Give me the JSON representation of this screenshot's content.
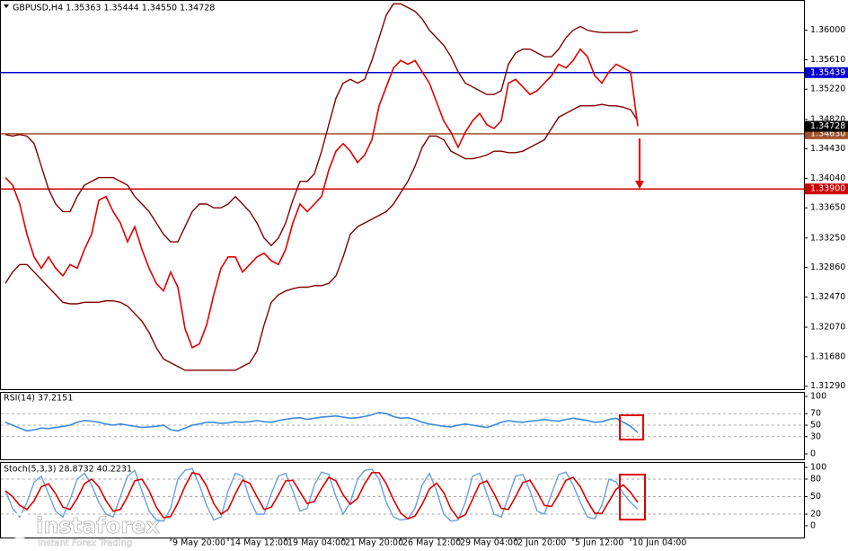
{
  "chart_data": [
    {
      "type": "line",
      "title": "GBPUSD,H4  1.35363 1.35444 1.34550 1.34728",
      "categories": [
        null,
        null,
        null,
        null,
        null,
        null,
        null,
        null,
        null,
        null,
        null,
        null,
        null,
        null,
        null,
        null,
        null,
        null,
        null,
        null,
        null,
        null,
        null,
        "9 May 20:00",
        null,
        null,
        null,
        null,
        null,
        null,
        null,
        "14 May 12:00",
        null,
        null,
        null,
        null,
        null,
        null,
        null,
        "19 May 04:00",
        null,
        null,
        null,
        null,
        null,
        null,
        null,
        "21 May 20:00",
        null,
        null,
        null,
        null,
        null,
        null,
        null,
        "26 May 12:00",
        null,
        null,
        null,
        null,
        null,
        null,
        null,
        "29 May 04:00",
        null,
        null,
        null,
        null,
        null,
        null,
        null,
        "2 Jun 20:00",
        null,
        null,
        null,
        null,
        null,
        null,
        null,
        "5 Jun 12:00",
        null,
        null,
        null,
        null,
        null,
        null,
        null,
        "10 Jun 04:00",
        null
      ],
      "series": [
        {
          "color": "#800000",
          "values": [
            1.3462,
            1.346,
            1.3462,
            1.346,
            1.345,
            1.342,
            1.339,
            1.337,
            1.336,
            1.336,
            1.338,
            1.3395,
            1.34,
            1.3405,
            1.3405,
            1.3405,
            1.34,
            1.3395,
            1.338,
            1.337,
            1.336,
            1.3345,
            1.333,
            1.332,
            1.332,
            1.334,
            1.336,
            1.337,
            1.337,
            1.3365,
            1.3365,
            1.337,
            1.338,
            1.337,
            1.336,
            1.3345,
            1.3325,
            1.3315,
            1.3325,
            1.3345,
            1.3375,
            1.34,
            1.34,
            1.341,
            1.344,
            1.3475,
            1.351,
            1.353,
            1.3535,
            1.353,
            1.3535,
            1.356,
            1.359,
            1.362,
            1.3635,
            1.3635,
            1.363,
            1.3625,
            1.3615,
            1.36,
            1.359,
            1.358,
            1.3565,
            1.3545,
            1.353,
            1.3525,
            1.352,
            1.3515,
            1.3515,
            1.352,
            1.3555,
            1.357,
            1.3575,
            1.3575,
            1.357,
            1.3565,
            1.3565,
            1.3575,
            1.359,
            1.36,
            1.3605,
            1.36,
            1.3598,
            1.3597,
            1.3597,
            1.3597,
            1.3597,
            1.3597,
            1.36
          ]
        },
        {
          "color": "#800000",
          "values": [
            1.3265,
            1.328,
            1.329,
            1.329,
            1.328,
            1.327,
            1.326,
            1.325,
            1.324,
            1.3238,
            1.3238,
            1.324,
            1.324,
            1.324,
            1.3242,
            1.3242,
            1.324,
            1.3235,
            1.3225,
            1.3215,
            1.32,
            1.318,
            1.3165,
            1.316,
            1.3155,
            1.315,
            1.315,
            1.315,
            1.315,
            1.315,
            1.315,
            1.315,
            1.315,
            1.3155,
            1.316,
            1.3175,
            1.321,
            1.324,
            1.325,
            1.3255,
            1.3258,
            1.326,
            1.326,
            1.3262,
            1.3262,
            1.3265,
            1.3275,
            1.33,
            1.333,
            1.334,
            1.3345,
            1.335,
            1.3355,
            1.336,
            1.337,
            1.3385,
            1.34,
            1.342,
            1.3445,
            1.346,
            1.346,
            1.3455,
            1.344,
            1.3435,
            1.343,
            1.343,
            1.3432,
            1.3435,
            1.344,
            1.344,
            1.3438,
            1.3438,
            1.344,
            1.3445,
            1.345,
            1.3455,
            1.347,
            1.3485,
            1.349,
            1.3495,
            1.35,
            1.35,
            1.35,
            1.3502,
            1.35,
            1.35,
            1.3498,
            1.3495,
            1.348
          ]
        },
        {
          "color": "#e00000",
          "values": [
            1.3405,
            1.3395,
            1.337,
            1.333,
            1.33,
            1.3285,
            1.33,
            1.3285,
            1.3275,
            1.329,
            1.3285,
            1.331,
            1.333,
            1.3375,
            1.338,
            1.336,
            1.3345,
            1.332,
            1.334,
            1.331,
            1.3285,
            1.3265,
            1.3255,
            1.328,
            1.326,
            1.3205,
            1.318,
            1.3185,
            1.321,
            1.325,
            1.3285,
            1.33,
            1.33,
            1.328,
            1.329,
            1.33,
            1.3305,
            1.3295,
            1.329,
            1.331,
            1.3345,
            1.337,
            1.336,
            1.337,
            1.338,
            1.3415,
            1.344,
            1.345,
            1.344,
            1.3425,
            1.3435,
            1.3455,
            1.35,
            1.3525,
            1.355,
            1.356,
            1.3555,
            1.356,
            1.3545,
            1.353,
            1.3505,
            1.348,
            1.3465,
            1.3445,
            1.3465,
            1.348,
            1.349,
            1.3475,
            1.347,
            1.348,
            1.353,
            1.3535,
            1.3525,
            1.3515,
            1.352,
            1.353,
            1.354,
            1.3555,
            1.355,
            1.356,
            1.3575,
            1.3565,
            1.354,
            1.353,
            1.3545,
            1.3555,
            1.355,
            1.3545,
            1.3473
          ]
        }
      ],
      "ylim": [
        1.3125,
        1.364
      ],
      "yticks": [
        {
          "value": 1.36,
          "label": "1.36000"
        },
        {
          "value": 1.3561,
          "label": "1.35610"
        },
        {
          "value": 1.3522,
          "label": "1.35220"
        },
        {
          "value": 1.3482,
          "label": "1.34820"
        },
        {
          "value": 1.3443,
          "label": "1.34430"
        },
        {
          "value": 1.3404,
          "label": "1.34040"
        },
        {
          "value": 1.3365,
          "label": "1.33650"
        },
        {
          "value": 1.3325,
          "label": "1.33250"
        },
        {
          "value": 1.3286,
          "label": "1.32860"
        },
        {
          "value": 1.3247,
          "label": "1.32470"
        },
        {
          "value": 1.3207,
          "label": "1.32070"
        },
        {
          "value": 1.3168,
          "label": "1.31680"
        },
        {
          "value": 1.3129,
          "label": "1.31290"
        }
      ],
      "levels": [
        {
          "value": 1.35439,
          "label": "1.35439",
          "color": "#0000cc"
        },
        {
          "value": 1.3463,
          "label": "1.34630",
          "color": "#a0522d"
        },
        {
          "value": 1.339,
          "label": "1.33900",
          "color": "#cc0000"
        }
      ],
      "last_price": {
        "value": 1.34728,
        "label": "1.34728"
      },
      "grid": false
    },
    {
      "type": "line",
      "title": "RSI(14) 37.2151",
      "series": [
        {
          "color": "#3c8ad8",
          "values": [
            55,
            50,
            45,
            40,
            42,
            45,
            44,
            46,
            48,
            50,
            55,
            58,
            57,
            55,
            52,
            50,
            52,
            50,
            48,
            46,
            47,
            48,
            50,
            42,
            40,
            45,
            50,
            52,
            55,
            55,
            53,
            54,
            56,
            55,
            56,
            58,
            56,
            55,
            58,
            60,
            62,
            63,
            60,
            62,
            64,
            65,
            66,
            64,
            62,
            63,
            65,
            68,
            72,
            70,
            65,
            62,
            63,
            60,
            55,
            52,
            50,
            48,
            47,
            50,
            52,
            50,
            48,
            46,
            50,
            55,
            58,
            56,
            55,
            57,
            58,
            60,
            58,
            57,
            60,
            62,
            60,
            58,
            55,
            56,
            60,
            62,
            55,
            48,
            37.2151
          ]
        }
      ],
      "ylim": [
        0,
        100
      ],
      "yticks": [
        100,
        70,
        50,
        30,
        0
      ],
      "grid": true
    },
    {
      "type": "line",
      "title": "Stoch(5,3,3) 28.8732 40.2231",
      "series": [
        {
          "color": "#6a9fe0",
          "values": [
            60,
            30,
            15,
            40,
            75,
            85,
            55,
            25,
            15,
            45,
            80,
            90,
            70,
            40,
            20,
            15,
            50,
            85,
            95,
            60,
            25,
            10,
            8,
            30,
            80,
            95,
            98,
            70,
            35,
            10,
            15,
            60,
            90,
            85,
            45,
            20,
            20,
            55,
            85,
            90,
            60,
            25,
            30,
            70,
            92,
            88,
            50,
            20,
            40,
            80,
            95,
            97,
            80,
            40,
            15,
            10,
            12,
            30,
            70,
            90,
            60,
            20,
            8,
            10,
            40,
            85,
            90,
            55,
            20,
            15,
            50,
            85,
            88,
            60,
            25,
            20,
            55,
            88,
            92,
            70,
            40,
            15,
            12,
            35,
            80,
            75,
            55,
            40,
            28.8732
          ]
        },
        {
          "color": "#e00000",
          "values": [
            60,
            50,
            35,
            28,
            43,
            67,
            72,
            55,
            32,
            28,
            47,
            72,
            80,
            67,
            43,
            25,
            28,
            50,
            77,
            80,
            60,
            32,
            14,
            16,
            39,
            68,
            91,
            88,
            68,
            38,
            20,
            28,
            55,
            78,
            73,
            50,
            28,
            32,
            53,
            77,
            78,
            58,
            38,
            42,
            64,
            83,
            77,
            53,
            37,
            47,
            72,
            91,
            91,
            72,
            45,
            22,
            12,
            17,
            37,
            63,
            73,
            57,
            29,
            13,
            19,
            45,
            72,
            77,
            55,
            30,
            28,
            50,
            74,
            78,
            58,
            35,
            33,
            54,
            78,
            83,
            67,
            42,
            22,
            21,
            42,
            63,
            70,
            57,
            40.2231
          ]
        }
      ],
      "ylim": [
        0,
        100
      ],
      "yticks": [
        100,
        80,
        50,
        20,
        0
      ],
      "grid": true
    }
  ],
  "watermark": {
    "brand": "instaforex",
    "tagline": "Instant Forex Trading"
  }
}
